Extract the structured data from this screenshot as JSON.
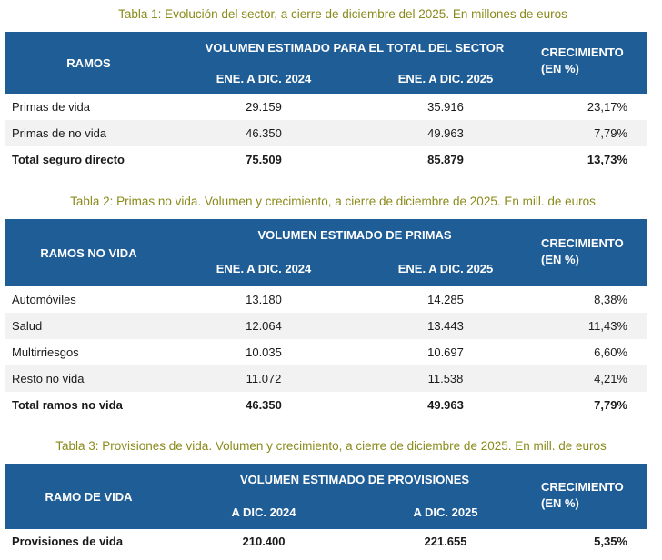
{
  "table1": {
    "caption": "Tabla 1: Evolución del sector, a cierre de diciembre del 2025. En millones de euros",
    "col_ramos": "RAMOS",
    "col_volumen": "VOLUMEN ESTIMADO PARA EL TOTAL DEL SECTOR",
    "col_year1": "ENE. A DIC. 2024",
    "col_year2": "ENE. A DIC. 2025",
    "col_crec_1": "CRECIMIENTO",
    "col_crec_2": "(EN %)",
    "rows": [
      {
        "ramo": "Primas de vida",
        "v2024": "29.159",
        "v2025": "35.916",
        "crec": "23,17%"
      },
      {
        "ramo": "Primas de no vida",
        "v2024": "46.350",
        "v2025": "49.963",
        "crec": "7,79%"
      },
      {
        "ramo": "Total seguro directo",
        "v2024": "75.509",
        "v2025": "85.879",
        "crec": "13,73%"
      }
    ]
  },
  "table2": {
    "caption": "Tabla 2: Primas no vida. Volumen y crecimiento, a cierre de diciembre de 2025. En mill. de euros",
    "col_ramos": "RAMOS NO VIDA",
    "col_volumen": "VOLUMEN ESTIMADO DE PRIMAS",
    "col_year1": "ENE. A DIC. 2024",
    "col_year2": "ENE. A DIC. 2025",
    "col_crec_1": "CRECIMIENTO",
    "col_crec_2": "(EN %)",
    "rows": [
      {
        "ramo": "Automóviles",
        "v2024": "13.180",
        "v2025": "14.285",
        "crec": "8,38%"
      },
      {
        "ramo": "Salud",
        "v2024": "12.064",
        "v2025": "13.443",
        "crec": "11,43%"
      },
      {
        "ramo": "Multirriesgos",
        "v2024": "10.035",
        "v2025": "10.697",
        "crec": "6,60%"
      },
      {
        "ramo": "Resto no vida",
        "v2024": "11.072",
        "v2025": "11.538",
        "crec": "4,21%"
      },
      {
        "ramo": "Total ramos no vida",
        "v2024": "46.350",
        "v2025": "49.963",
        "crec": "7,79%"
      }
    ]
  },
  "table3": {
    "caption": "Tabla 3: Provisiones de vida. Volumen y crecimiento, a cierre de diciembre de 2025. En mill. de euros",
    "col_ramos": "RAMO DE VIDA",
    "col_volumen": "VOLUMEN ESTIMADO DE PROVISIONES",
    "col_year1": "A DIC. 2024",
    "col_year2": "A DIC. 2025",
    "col_crec_1": "CRECIMIENTO",
    "col_crec_2": "(EN %)",
    "rows": [
      {
        "ramo": "Provisiones de vida",
        "v2024": "210.400",
        "v2025": "221.655",
        "crec": "5,35%"
      }
    ]
  }
}
